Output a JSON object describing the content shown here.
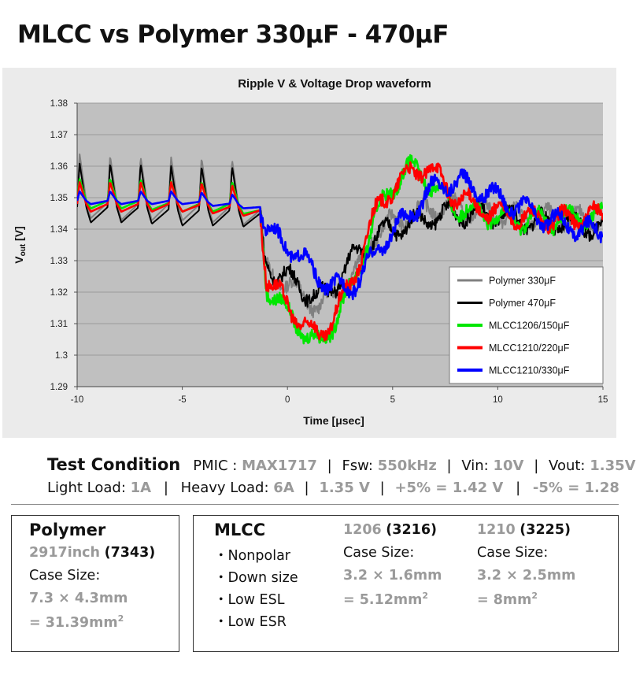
{
  "page_title": "MLCC vs Polymer 330μF - 470μF",
  "chart_data": {
    "type": "line",
    "title": "Ripple V  &  Voltage Drop waveform",
    "xlabel": "Time [μsec]",
    "ylabel": "Vout [V]",
    "ylabel_main": "V",
    "ylabel_sub": "out",
    "ylabel_unit": " [V]",
    "xlim": [
      -10,
      15
    ],
    "ylim": [
      1.29,
      1.38
    ],
    "xticks": [
      -10,
      -5,
      0,
      5,
      10,
      15
    ],
    "xtick_labels": [
      "-10",
      "-5",
      "0",
      "5",
      "10",
      "15"
    ],
    "yticks": [
      1.29,
      1.3,
      1.31,
      1.32,
      1.33,
      1.34,
      1.35,
      1.36,
      1.37,
      1.38
    ],
    "ytick_labels": [
      "1.29",
      "1.3",
      "1.31",
      "1.32",
      "1.33",
      "1.34",
      "1.35",
      "1.36",
      "1.37",
      "1.38"
    ],
    "grid": "horizontal",
    "legend_position": "bottom-right",
    "series": [
      {
        "name": "Polymer 330μF",
        "color": "#808080",
        "x": [
          -10,
          -7.5,
          -5,
          -2.5,
          -1.3,
          -1.1,
          -0.5,
          0,
          0.5,
          1,
          1.5,
          2,
          2.5,
          3,
          3.5,
          4,
          5,
          6,
          7,
          8,
          9,
          10,
          11,
          12,
          13,
          14,
          15
        ],
        "y": [
          1.349,
          1.348,
          1.348,
          1.347,
          1.346,
          1.328,
          1.325,
          1.322,
          1.32,
          1.318,
          1.315,
          1.318,
          1.322,
          1.325,
          1.328,
          1.338,
          1.342,
          1.345,
          1.347,
          1.347,
          1.346,
          1.345,
          1.344,
          1.344,
          1.343,
          1.343,
          1.343
        ],
        "ripple": {
          "start": -10,
          "end": -1.3,
          "period": 1.45,
          "amp": 0.015
        }
      },
      {
        "name": "Polymer 470μF",
        "color": "#000000",
        "x": [
          -10,
          -7.5,
          -5,
          -2.5,
          -1.3,
          -1.1,
          -0.6,
          0,
          0.5,
          1,
          1.5,
          2,
          2.5,
          3,
          3.5,
          4,
          5,
          6,
          7,
          8,
          9,
          10,
          11,
          12,
          13,
          14,
          15
        ],
        "y": [
          1.347,
          1.347,
          1.346,
          1.346,
          1.345,
          1.33,
          1.326,
          1.325,
          1.322,
          1.32,
          1.318,
          1.32,
          1.325,
          1.33,
          1.333,
          1.337,
          1.34,
          1.342,
          1.344,
          1.345,
          1.345,
          1.344,
          1.343,
          1.342,
          1.342,
          1.341,
          1.341
        ],
        "ripple": {
          "start": -10,
          "end": -1.3,
          "period": 1.45,
          "amp": 0.014
        }
      },
      {
        "name": "MLCC1206/150μF",
        "color": "#00e600",
        "x": [
          -10,
          -7.5,
          -5,
          -2.5,
          -1.3,
          -1.0,
          -0.5,
          0,
          0.5,
          1,
          1.5,
          2,
          2.5,
          3,
          3.5,
          4,
          4.5,
          5,
          5.5,
          6,
          6.5,
          7,
          7.5,
          8,
          9,
          10,
          11,
          12,
          13,
          14,
          15
        ],
        "y": [
          1.349,
          1.349,
          1.348,
          1.348,
          1.346,
          1.322,
          1.318,
          1.313,
          1.31,
          1.306,
          1.303,
          1.308,
          1.315,
          1.32,
          1.33,
          1.34,
          1.348,
          1.354,
          1.358,
          1.359,
          1.357,
          1.353,
          1.35,
          1.347,
          1.345,
          1.344,
          1.343,
          1.343,
          1.343,
          1.344,
          1.344
        ],
        "ripple": {
          "start": -10,
          "end": -1.3,
          "period": 1.45,
          "amp": 0.007
        }
      },
      {
        "name": "MLCC1210/220μF",
        "color": "#ff0000",
        "x": [
          -10,
          -7.5,
          -5,
          -2.5,
          -1.3,
          -1.0,
          -0.5,
          0,
          0.5,
          1,
          1.5,
          2,
          2.5,
          3,
          3.5,
          4,
          4.5,
          5,
          5.5,
          6,
          6.5,
          7,
          7.5,
          8,
          9,
          10,
          11,
          12,
          13,
          14,
          15
        ],
        "y": [
          1.348,
          1.348,
          1.348,
          1.347,
          1.346,
          1.325,
          1.32,
          1.316,
          1.312,
          1.308,
          1.306,
          1.31,
          1.316,
          1.322,
          1.332,
          1.342,
          1.349,
          1.353,
          1.356,
          1.358,
          1.36,
          1.358,
          1.354,
          1.35,
          1.347,
          1.345,
          1.344,
          1.343,
          1.343,
          1.344,
          1.344
        ],
        "ripple": {
          "start": -10,
          "end": -1.3,
          "period": 1.45,
          "amp": 0.007
        }
      },
      {
        "name": "MLCC1210/330μF",
        "color": "#0000ff",
        "x": [
          -10,
          -7.5,
          -5,
          -2.5,
          -1.3,
          -1.0,
          -0.5,
          0,
          0.5,
          1,
          1.5,
          2,
          2.5,
          3,
          3.5,
          4,
          4.5,
          5,
          5.5,
          6,
          6.5,
          7,
          7.5,
          8,
          9,
          10,
          11,
          12,
          13,
          14,
          15
        ],
        "y": [
          1.349,
          1.349,
          1.349,
          1.348,
          1.347,
          1.34,
          1.337,
          1.335,
          1.332,
          1.328,
          1.325,
          1.322,
          1.321,
          1.322,
          1.325,
          1.33,
          1.336,
          1.339,
          1.342,
          1.346,
          1.35,
          1.353,
          1.355,
          1.355,
          1.353,
          1.35,
          1.347,
          1.344,
          1.342,
          1.34,
          1.339
        ],
        "ripple": {
          "start": -10,
          "end": -1.3,
          "period": 1.45,
          "amp": 0.003
        }
      }
    ]
  },
  "test_condition": {
    "title": "Test Condition",
    "pmic_label": "PMIC :",
    "pmic_value": "MAX1717",
    "fsw_label": "Fsw:",
    "fsw_value": "550kHz",
    "vin_label": "Vin:",
    "vin_value": "10V",
    "vout_label": "Vout:",
    "vout_value": "1.35V",
    "light_label": "Light Load:",
    "light_value": "1A",
    "heavy_label": "Heavy Load:",
    "heavy_value": "6A",
    "v_nominal": "1.35 V",
    "plus_tol": "+5% = 1.42 V",
    "minus_tol": "-5% = 1.28",
    "separator": "|"
  },
  "polymer_box": {
    "title": "Polymer",
    "size_inch": "2917inch",
    "size_metric": "(7343)",
    "case_size_label": "Case Size:",
    "dims": "7.3 × 4.3mm",
    "area": "= 31.39mm",
    "area_exp": "2"
  },
  "mlcc_box": {
    "title": "MLCC",
    "features": [
      "・Nonpolar",
      "・Down size",
      "・Low ESL",
      "・Low ESR"
    ],
    "col1": {
      "code": "1206",
      "metric": "(3216)",
      "case_size_label": "Case Size:",
      "dims": "3.2 × 1.6mm",
      "area": "= 5.12mm",
      "area_exp": "2"
    },
    "col2": {
      "code": "1210",
      "metric": "(3225)",
      "case_size_label": "Case Size:",
      "dims": "3.2 × 2.5mm",
      "area": "= 8mm",
      "area_exp": "2"
    }
  }
}
